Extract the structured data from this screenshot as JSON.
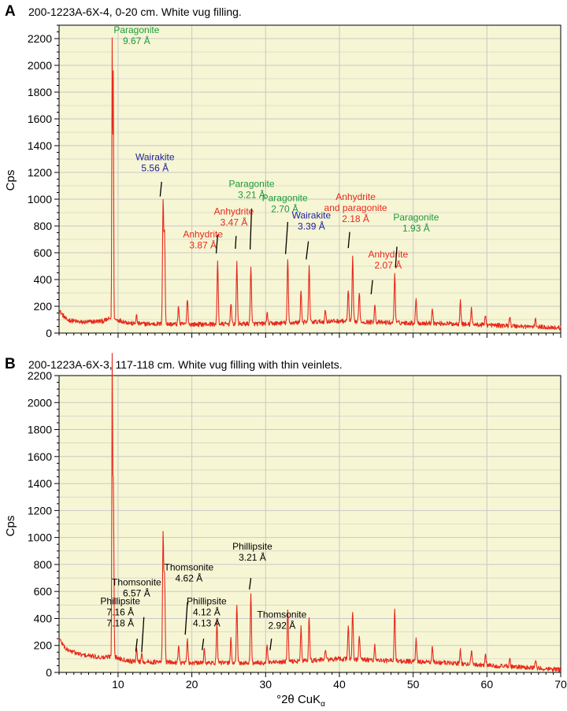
{
  "colors": {
    "plot_background": "#f6f6d4",
    "grid": "#c8c8c8",
    "trace": "#e8291c",
    "annotation_red": "#e8291c",
    "annotation_green": "#1c9a3c",
    "annotation_blue": "#2020a0",
    "annotation_black": "#000000"
  },
  "chart_data": [
    {
      "type": "line",
      "panel_letter": "A",
      "title": "200-1223A-6X-4, 0-20 cm. White vug filling.",
      "xlabel": "",
      "ylabel": "Cps",
      "xlim": [
        2,
        70
      ],
      "ylim": [
        0,
        2300
      ],
      "x_ticks": [],
      "y_ticks": [
        "0",
        "200",
        "400",
        "600",
        "800",
        "1000",
        "1200",
        "1400",
        "1600",
        "1800",
        "2000",
        "2200"
      ],
      "grid": true,
      "baseline": [
        [
          2,
          170
        ],
        [
          3,
          100
        ],
        [
          5,
          80
        ],
        [
          8,
          90
        ],
        [
          9,
          110
        ],
        [
          12,
          70
        ],
        [
          20,
          65
        ],
        [
          30,
          70
        ],
        [
          40,
          90
        ],
        [
          45,
          80
        ],
        [
          55,
          70
        ],
        [
          70,
          40
        ]
      ],
      "peaks": [
        {
          "x": 9.2,
          "y": 2200
        },
        {
          "x": 9.35,
          "y": 1940
        },
        {
          "x": 12.5,
          "y": 130
        },
        {
          "x": 16.1,
          "y": 980
        },
        {
          "x": 16.3,
          "y": 740
        },
        {
          "x": 18.2,
          "y": 200
        },
        {
          "x": 19.4,
          "y": 260
        },
        {
          "x": 23.5,
          "y": 540
        },
        {
          "x": 25.3,
          "y": 230
        },
        {
          "x": 26.1,
          "y": 520
        },
        {
          "x": 28.0,
          "y": 500
        },
        {
          "x": 30.2,
          "y": 150
        },
        {
          "x": 33.0,
          "y": 550
        },
        {
          "x": 34.8,
          "y": 320
        },
        {
          "x": 35.9,
          "y": 510
        },
        {
          "x": 38.1,
          "y": 170
        },
        {
          "x": 41.2,
          "y": 330
        },
        {
          "x": 41.8,
          "y": 560
        },
        {
          "x": 42.7,
          "y": 310
        },
        {
          "x": 44.8,
          "y": 220
        },
        {
          "x": 47.5,
          "y": 450
        },
        {
          "x": 50.4,
          "y": 270
        },
        {
          "x": 52.6,
          "y": 190
        },
        {
          "x": 56.4,
          "y": 250
        },
        {
          "x": 57.9,
          "y": 190
        },
        {
          "x": 59.8,
          "y": 140
        },
        {
          "x": 63.1,
          "y": 130
        },
        {
          "x": 66.6,
          "y": 100
        }
      ],
      "annotations": [
        {
          "lines": [
            "Paragonite",
            "9.67 Å"
          ],
          "color": "green",
          "x": 12.5,
          "y": 2240,
          "leader": null
        },
        {
          "lines": [
            "Wairakite",
            "5.56 Å"
          ],
          "color": "blue",
          "x": 15.0,
          "y": 1290,
          "leader": [
            15.7,
            1020,
            15.9,
            1130
          ]
        },
        {
          "lines": [
            "Paragonite",
            "3.21 Å"
          ],
          "color": "green",
          "x": 28.1,
          "y": 1090,
          "leader": [
            27.9,
            625,
            28.1,
            930
          ]
        },
        {
          "lines": [
            "Anhydrite",
            "3.47 Å"
          ],
          "color": "red",
          "x": 25.7,
          "y": 885,
          "leader": [
            25.9,
            630,
            26.0,
            725
          ]
        },
        {
          "lines": [
            "Anhydrite",
            "3.87 Å"
          ],
          "color": "red",
          "x": 21.5,
          "y": 715,
          "leader": [
            23.3,
            595,
            23.5,
            735
          ]
        },
        {
          "lines": [
            "Paragonite",
            "2.70 Å"
          ],
          "color": "green",
          "x": 32.6,
          "y": 985,
          "leader": [
            32.7,
            590,
            33.0,
            830
          ]
        },
        {
          "lines": [
            "Wairakite",
            "3.39 Å"
          ],
          "color": "blue",
          "x": 36.2,
          "y": 855,
          "leader": [
            35.5,
            550,
            35.8,
            685
          ]
        },
        {
          "lines": [
            "Anhydrite",
            "and paragonite",
            "2.18 Å"
          ],
          "color": "red",
          "x": 42.2,
          "y": 995,
          "leader": [
            41.2,
            635,
            41.4,
            755
          ]
        },
        {
          "lines": [
            "Anhydrite",
            "2.07 Å"
          ],
          "color": "red",
          "x": 46.6,
          "y": 565,
          "leader": [
            44.3,
            290,
            44.5,
            395
          ]
        },
        {
          "lines": [
            "Paragonite",
            "1.93 Å"
          ],
          "color": "green",
          "x": 50.4,
          "y": 840,
          "leader": [
            47.6,
            490,
            47.8,
            645
          ]
        }
      ],
      "color_labels": {
        "green": "#1c9a3c",
        "red": "#e8291c",
        "blue": "#2020a0"
      }
    },
    {
      "type": "line",
      "panel_letter": "B",
      "title": "200-1223A-6X-3, 117-118 cm. White vug filling with thin veinlets.",
      "xlabel": "°2θ CuKα",
      "ylabel": "Cps",
      "xlim": [
        2,
        70
      ],
      "ylim": [
        0,
        2200
      ],
      "x_ticks": [
        "10",
        "20",
        "30",
        "40",
        "50",
        "60",
        "70"
      ],
      "y_ticks": [
        "0",
        "200",
        "400",
        "600",
        "800",
        "1000",
        "1200",
        "1400",
        "1600",
        "1800",
        "2000",
        "2200"
      ],
      "grid": true,
      "baseline": [
        [
          2,
          250
        ],
        [
          3,
          170
        ],
        [
          5,
          130
        ],
        [
          8,
          110
        ],
        [
          9,
          120
        ],
        [
          12,
          80
        ],
        [
          20,
          70
        ],
        [
          30,
          70
        ],
        [
          40,
          100
        ],
        [
          45,
          90
        ],
        [
          55,
          70
        ],
        [
          70,
          20
        ]
      ],
      "peaks": [
        {
          "x": 9.2,
          "y": 2150
        },
        {
          "x": 9.35,
          "y": 1450
        },
        {
          "x": 12.5,
          "y": 180
        },
        {
          "x": 13.2,
          "y": 140
        },
        {
          "x": 16.1,
          "y": 1010
        },
        {
          "x": 16.3,
          "y": 720
        },
        {
          "x": 18.2,
          "y": 210
        },
        {
          "x": 19.4,
          "y": 240
        },
        {
          "x": 21.7,
          "y": 180
        },
        {
          "x": 23.4,
          "y": 370
        },
        {
          "x": 25.3,
          "y": 260
        },
        {
          "x": 26.1,
          "y": 500
        },
        {
          "x": 28.0,
          "y": 580
        },
        {
          "x": 30.2,
          "y": 200
        },
        {
          "x": 33.0,
          "y": 470
        },
        {
          "x": 34.8,
          "y": 330
        },
        {
          "x": 35.9,
          "y": 420
        },
        {
          "x": 38.1,
          "y": 170
        },
        {
          "x": 41.2,
          "y": 350
        },
        {
          "x": 41.8,
          "y": 460
        },
        {
          "x": 42.7,
          "y": 280
        },
        {
          "x": 44.8,
          "y": 200
        },
        {
          "x": 47.5,
          "y": 470
        },
        {
          "x": 50.4,
          "y": 250
        },
        {
          "x": 52.6,
          "y": 190
        },
        {
          "x": 56.4,
          "y": 170
        },
        {
          "x": 57.9,
          "y": 160
        },
        {
          "x": 59.8,
          "y": 130
        },
        {
          "x": 63.1,
          "y": 110
        },
        {
          "x": 66.6,
          "y": 90
        }
      ],
      "annotations": [
        {
          "lines": [
            "Thomsonite",
            "6.57 Å"
          ],
          "color": "black",
          "x": 12.5,
          "y": 645,
          "leader": [
            13.2,
            150,
            13.5,
            410
          ]
        },
        {
          "lines": [
            "Phillipsite",
            "7.16  Å",
            "7.18 Å"
          ],
          "color": "black",
          "x": 10.3,
          "y": 505,
          "leader": [
            12.4,
            155,
            12.6,
            250
          ]
        },
        {
          "lines": [
            "Thomsonite",
            "4.62 Å"
          ],
          "color": "black",
          "x": 19.6,
          "y": 755,
          "leader": [
            19.1,
            280,
            19.4,
            520
          ]
        },
        {
          "lines": [
            "Phillipsite",
            "4.12 Å",
            "4.13 Å"
          ],
          "color": "black",
          "x": 22.0,
          "y": 505,
          "leader": [
            21.4,
            165,
            21.6,
            250
          ]
        },
        {
          "lines": [
            "Phillipsite",
            "3.21 Å"
          ],
          "color": "black",
          "x": 28.2,
          "y": 910,
          "leader": [
            27.8,
            615,
            28.0,
            700
          ]
        },
        {
          "lines": [
            "Thomsonite",
            "2.92 Å"
          ],
          "color": "black",
          "x": 32.2,
          "y": 405,
          "leader": [
            30.6,
            165,
            30.8,
            250
          ]
        }
      ]
    }
  ]
}
